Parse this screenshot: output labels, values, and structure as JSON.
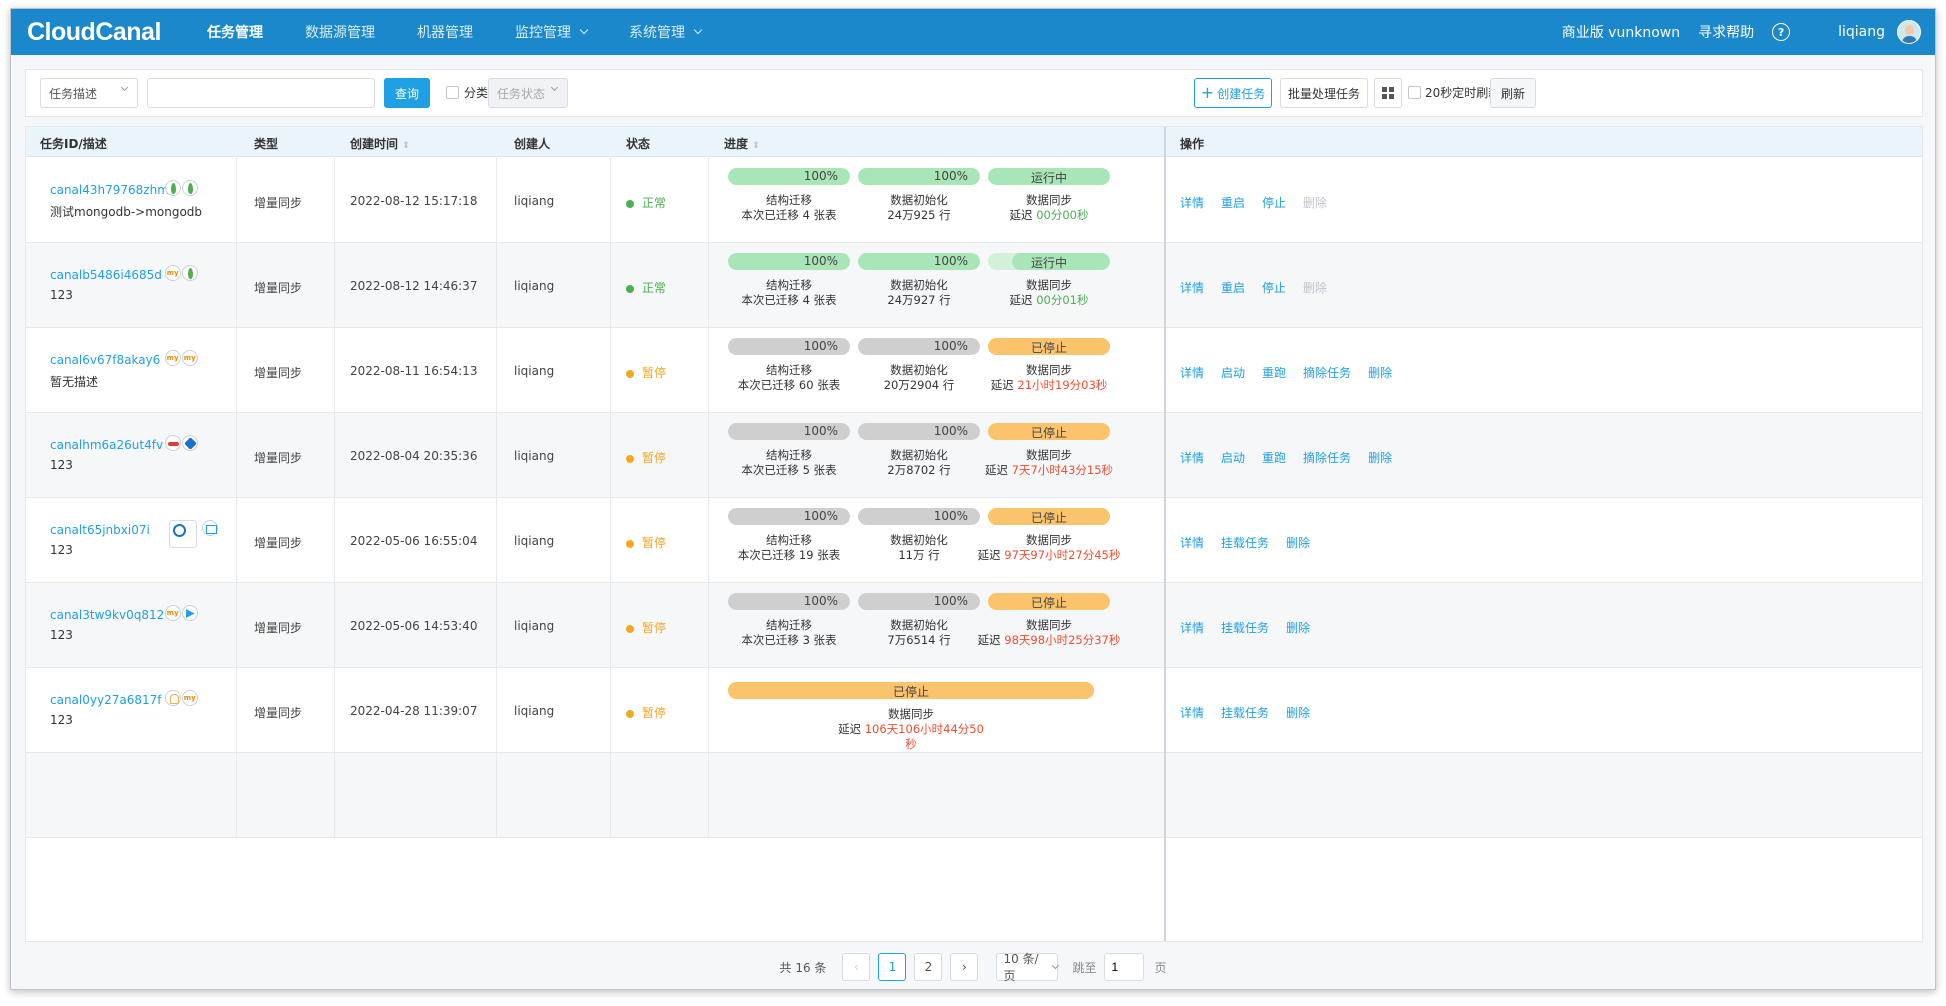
{
  "nav": {
    "logo": "CloudCanal",
    "items": [
      {
        "label": "任务管理",
        "active": true,
        "dropdown": false
      },
      {
        "label": "数据源管理",
        "active": false,
        "dropdown": false
      },
      {
        "label": "机器管理",
        "active": false,
        "dropdown": false
      },
      {
        "label": "监控管理",
        "active": false,
        "dropdown": true
      },
      {
        "label": "系统管理",
        "active": false,
        "dropdown": true
      }
    ],
    "edition": "商业版 vunknown",
    "help": "寻求帮助",
    "help_icon_glyph": "?",
    "user": "liqiang"
  },
  "filter": {
    "field_select": "任务描述",
    "search_value": "",
    "query_button": "查询",
    "category_label": "分类",
    "status_select": "任务状态",
    "create_button": "创建任务",
    "create_icon_glyph": "+",
    "batch_button": "批量处理任务",
    "auto_refresh_label": "20秒定时刷新",
    "refresh_button": "刷新"
  },
  "table": {
    "headers": {
      "id": "任务ID/描述",
      "type": "类型",
      "created": "创建时间",
      "creator": "创建人",
      "status": "状态",
      "progress": "进度",
      "ops": "操作"
    },
    "rows": [
      {
        "id": "canal43h79768zhm",
        "desc": "测试mongodb->mongodb",
        "icons": [
          "mongo",
          "mongo"
        ],
        "type": "增量同步",
        "created": "2022-08-12 15:17:18",
        "creator": "liqiang",
        "status": "正常",
        "status_kind": "ok",
        "progress": {
          "mode": "three",
          "struct_pct": "100%",
          "init_pct": "100%",
          "sync_label": "运行中",
          "sync_kind": "run",
          "struct_name": "结构迁移",
          "struct_detail": "本次已迁移 4 张表",
          "init_name": "数据初始化",
          "init_detail": "24万925 行",
          "sync_name": "数据同步",
          "delay_label": "延迟",
          "delay": "00分00秒",
          "delay_kind": "green"
        },
        "ops": [
          {
            "label": "详情",
            "disabled": false
          },
          {
            "label": "重启",
            "disabled": false
          },
          {
            "label": "停止",
            "disabled": false
          },
          {
            "label": "删除",
            "disabled": true
          }
        ]
      },
      {
        "id": "canalb5486i4685d",
        "desc": "123",
        "icons": [
          "mysql",
          "mongo"
        ],
        "type": "增量同步",
        "created": "2022-08-12 14:46:37",
        "creator": "liqiang",
        "status": "正常",
        "status_kind": "ok",
        "progress": {
          "mode": "three",
          "struct_pct": "100%",
          "init_pct": "100%",
          "sync_label": "运行中",
          "sync_kind": "run",
          "struct_name": "结构迁移",
          "struct_detail": "本次已迁移 4 张表",
          "init_name": "数据初始化",
          "init_detail": "24万927 行",
          "sync_name": "数据同步",
          "delay_label": "延迟",
          "delay": "00分01秒",
          "delay_kind": "green"
        },
        "ops": [
          {
            "label": "详情",
            "disabled": false
          },
          {
            "label": "重启",
            "disabled": false
          },
          {
            "label": "停止",
            "disabled": false
          },
          {
            "label": "删除",
            "disabled": true
          }
        ]
      },
      {
        "id": "canal6v67f8akay6",
        "desc": "暂无描述",
        "icons": [
          "mysql",
          "mysql"
        ],
        "type": "增量同步",
        "created": "2022-08-11 16:54:13",
        "creator": "liqiang",
        "status": "暂停",
        "status_kind": "pause",
        "progress": {
          "mode": "three",
          "struct_pct": "100%",
          "init_pct": "100%",
          "sync_label": "已停止",
          "sync_kind": "stop",
          "struct_name": "结构迁移",
          "struct_detail": "本次已迁移 60 张表",
          "init_name": "数据初始化",
          "init_detail": "20万2904 行",
          "sync_name": "数据同步",
          "delay_label": "延迟",
          "delay": "21小时19分03秒",
          "delay_kind": "red"
        },
        "ops": [
          {
            "label": "详情",
            "disabled": false
          },
          {
            "label": "启动",
            "disabled": false
          },
          {
            "label": "重跑",
            "disabled": false
          },
          {
            "label": "摘除任务",
            "disabled": false
          },
          {
            "label": "删除",
            "disabled": false
          }
        ]
      },
      {
        "id": "canalhm6a26ut4fv",
        "desc": "123",
        "icons": [
          "red",
          "hex"
        ],
        "type": "增量同步",
        "created": "2022-08-04 20:35:36",
        "creator": "liqiang",
        "status": "暂停",
        "status_kind": "pause",
        "progress": {
          "mode": "three",
          "struct_pct": "100%",
          "init_pct": "100%",
          "sync_label": "已停止",
          "sync_kind": "stop",
          "struct_name": "结构迁移",
          "struct_detail": "本次已迁移 5 张表",
          "init_name": "数据初始化",
          "init_detail": "2万8702 行",
          "sync_name": "数据同步",
          "delay_label": "延迟",
          "delay": "7天7小时43分15秒",
          "delay_kind": "red"
        },
        "ops": [
          {
            "label": "详情",
            "disabled": false
          },
          {
            "label": "启动",
            "disabled": false
          },
          {
            "label": "重跑",
            "disabled": false
          },
          {
            "label": "摘除任务",
            "disabled": false
          },
          {
            "label": "删除",
            "disabled": false
          }
        ]
      },
      {
        "id": "canalt65jnbxi07i",
        "desc": "123",
        "icons": [
          "pg",
          "img"
        ],
        "type": "增量同步",
        "created": "2022-05-06 16:55:04",
        "creator": "liqiang",
        "status": "暂停",
        "status_kind": "pause",
        "progress": {
          "mode": "three",
          "struct_pct": "100%",
          "init_pct": "100%",
          "sync_label": "已停止",
          "sync_kind": "stop",
          "struct_name": "结构迁移",
          "struct_detail": "本次已迁移 19 张表",
          "init_name": "数据初始化",
          "init_detail": "11万 行",
          "sync_name": "数据同步",
          "delay_label": "延迟",
          "delay": "97天97小时27分45秒",
          "delay_kind": "red"
        },
        "ops": [
          {
            "label": "详情",
            "disabled": false
          },
          {
            "label": "挂载任务",
            "disabled": false
          },
          {
            "label": "删除",
            "disabled": false
          }
        ]
      },
      {
        "id": "canal3tw9kv0q812",
        "desc": "123",
        "icons": [
          "mysql",
          "kafka"
        ],
        "type": "增量同步",
        "created": "2022-05-06 14:53:40",
        "creator": "liqiang",
        "status": "暂停",
        "status_kind": "pause",
        "progress": {
          "mode": "three",
          "struct_pct": "100%",
          "init_pct": "100%",
          "sync_label": "已停止",
          "sync_kind": "stop",
          "struct_name": "结构迁移",
          "struct_detail": "本次已迁移 3 张表",
          "init_name": "数据初始化",
          "init_detail": "7万6514 行",
          "sync_name": "数据同步",
          "delay_label": "延迟",
          "delay": "98天98小时25分37秒",
          "delay_kind": "red"
        },
        "ops": [
          {
            "label": "详情",
            "disabled": false
          },
          {
            "label": "挂载任务",
            "disabled": false
          },
          {
            "label": "删除",
            "disabled": false
          }
        ]
      },
      {
        "id": "canal0yy27a6817f",
        "desc": "123",
        "icons": [
          "bell",
          "mysql"
        ],
        "type": "增量同步",
        "created": "2022-04-28 11:39:07",
        "creator": "liqiang",
        "status": "暂停",
        "status_kind": "pause",
        "progress": {
          "mode": "single",
          "sync_label": "已停止",
          "sync_kind": "stop",
          "sync_name": "数据同步",
          "delay_label": "延迟",
          "delay": "106天106小时44分50秒",
          "delay_kind": "red"
        },
        "ops": [
          {
            "label": "详情",
            "disabled": false
          },
          {
            "label": "挂载任务",
            "disabled": false
          },
          {
            "label": "删除",
            "disabled": false
          }
        ]
      }
    ]
  },
  "pager": {
    "total": "共 16 条",
    "prev_glyph": "‹",
    "pages": [
      "1",
      "2"
    ],
    "current": "1",
    "next_glyph": "›",
    "page_size": "10 条/页",
    "jump_label": "跳至",
    "jump_value": "1",
    "page_unit": "页"
  }
}
